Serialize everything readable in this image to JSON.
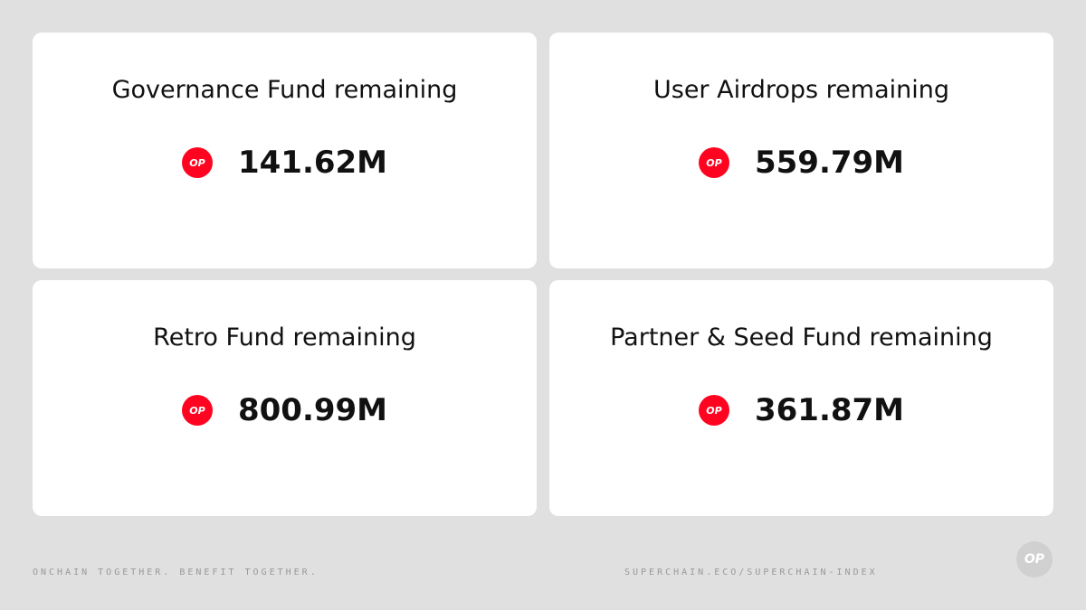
{
  "cards": [
    {
      "title": "Governance Fund remaining",
      "badge": "OP",
      "value": "141.62M"
    },
    {
      "title": "User Airdrops remaining",
      "badge": "OP",
      "value": "559.79M"
    },
    {
      "title": "Retro Fund remaining",
      "badge": "OP",
      "value": "800.99M"
    },
    {
      "title": "Partner & Seed Fund remaining",
      "badge": "OP",
      "value": "361.87M"
    }
  ],
  "footer": {
    "tagline": "ONCHAIN TOGETHER. BENEFIT TOGETHER.",
    "url": "SUPERCHAIN.ECO/SUPERCHAIN-INDEX",
    "logo": "OP"
  }
}
